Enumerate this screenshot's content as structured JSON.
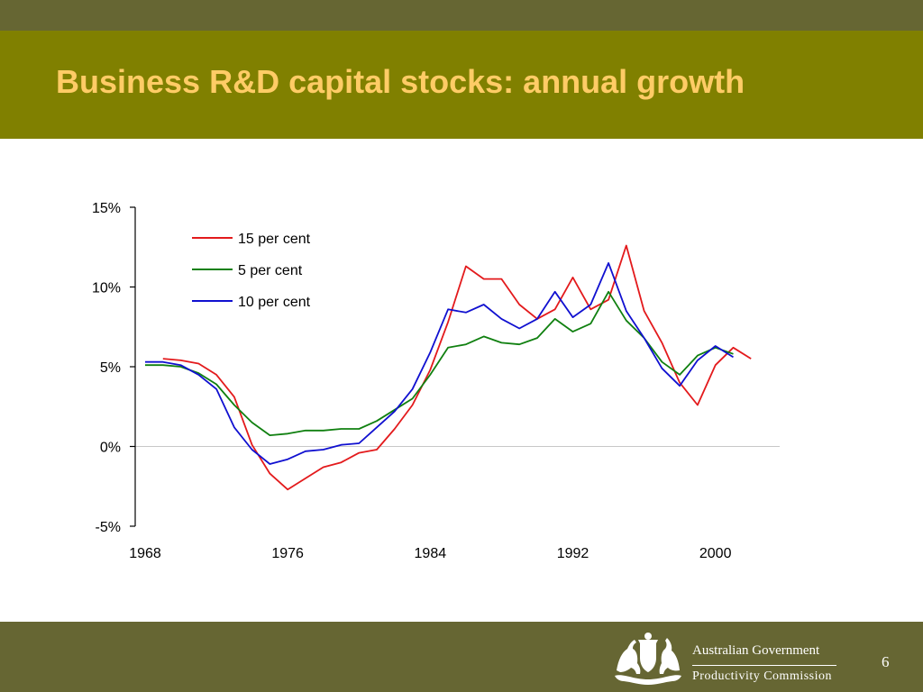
{
  "slide": {
    "title": "Business R&D capital stocks: annual growth",
    "page_number": "6",
    "colors": {
      "top_strip": "#666633",
      "title_band": "#808000",
      "title_text": "#ffcc66",
      "footer": "#666633"
    }
  },
  "footer": {
    "government": "Australian Government",
    "agency": "Productivity Commission",
    "crest_icon": "commonwealth-coat-of-arms"
  },
  "chart_data": {
    "type": "line",
    "title": "",
    "xlabel": "",
    "ylabel": "",
    "x_ticks": [
      "1968",
      "1976",
      "1984",
      "1992",
      "2000"
    ],
    "y_ticks": [
      "-5%",
      "0%",
      "5%",
      "10%",
      "15%"
    ],
    "xlim": [
      1968,
      2003
    ],
    "ylim": [
      -5,
      15
    ],
    "y_unit": "%",
    "grid": "horizontal line at 0%",
    "legend_position": "top-left",
    "series": [
      {
        "name": "15 per cent",
        "color": "#e31a1c",
        "x": [
          1969,
          1970,
          1971,
          1972,
          1973,
          1974,
          1975,
          1976,
          1977,
          1978,
          1979,
          1980,
          1981,
          1982,
          1983,
          1984,
          1985,
          1986,
          1987,
          1988,
          1989,
          1990,
          1991,
          1992,
          1993,
          1994,
          1995,
          1996,
          1997,
          1998,
          1999,
          2000,
          2001,
          2002
        ],
        "values": [
          5.5,
          5.4,
          5.2,
          4.5,
          3.1,
          0.1,
          -1.7,
          -2.7,
          -2.0,
          -1.3,
          -1.0,
          -0.4,
          -0.2,
          1.1,
          2.6,
          4.8,
          7.8,
          11.3,
          10.5,
          10.5,
          8.9,
          8.0,
          8.6,
          10.6,
          8.6,
          9.2,
          12.6,
          8.5,
          6.5,
          4.0,
          2.6,
          5.1,
          6.2,
          5.5
        ]
      },
      {
        "name": "5 per cent",
        "color": "#108010",
        "x": [
          1968,
          1969,
          1970,
          1971,
          1972,
          1973,
          1974,
          1975,
          1976,
          1977,
          1978,
          1979,
          1980,
          1981,
          1982,
          1983,
          1984,
          1985,
          1986,
          1987,
          1988,
          1989,
          1990,
          1991,
          1992,
          1993,
          1994,
          1995,
          1996,
          1997,
          1998,
          1999,
          2000,
          2001
        ],
        "values": [
          5.1,
          5.1,
          5.0,
          4.6,
          3.9,
          2.6,
          1.5,
          0.7,
          0.8,
          1.0,
          1.0,
          1.1,
          1.1,
          1.6,
          2.3,
          3.0,
          4.5,
          6.2,
          6.4,
          6.9,
          6.5,
          6.4,
          6.8,
          8.0,
          7.2,
          7.7,
          9.7,
          7.9,
          6.8,
          5.3,
          4.5,
          5.7,
          6.2,
          5.8
        ]
      },
      {
        "name": "10 per cent",
        "color": "#1010d0",
        "x": [
          1968,
          1969,
          1970,
          1971,
          1972,
          1973,
          1974,
          1975,
          1976,
          1977,
          1978,
          1979,
          1980,
          1981,
          1982,
          1983,
          1984,
          1985,
          1986,
          1987,
          1988,
          1989,
          1990,
          1991,
          1992,
          1993,
          1994,
          1995,
          1996,
          1997,
          1998,
          1999,
          2000,
          2001
        ],
        "values": [
          5.3,
          5.3,
          5.1,
          4.5,
          3.6,
          1.2,
          -0.2,
          -1.1,
          -0.8,
          -0.3,
          -0.2,
          0.1,
          0.2,
          1.2,
          2.2,
          3.6,
          5.9,
          8.6,
          8.4,
          8.9,
          8.0,
          7.4,
          8.0,
          9.7,
          8.1,
          8.9,
          11.5,
          8.5,
          6.8,
          4.9,
          3.8,
          5.4,
          6.3,
          5.6
        ]
      }
    ]
  }
}
